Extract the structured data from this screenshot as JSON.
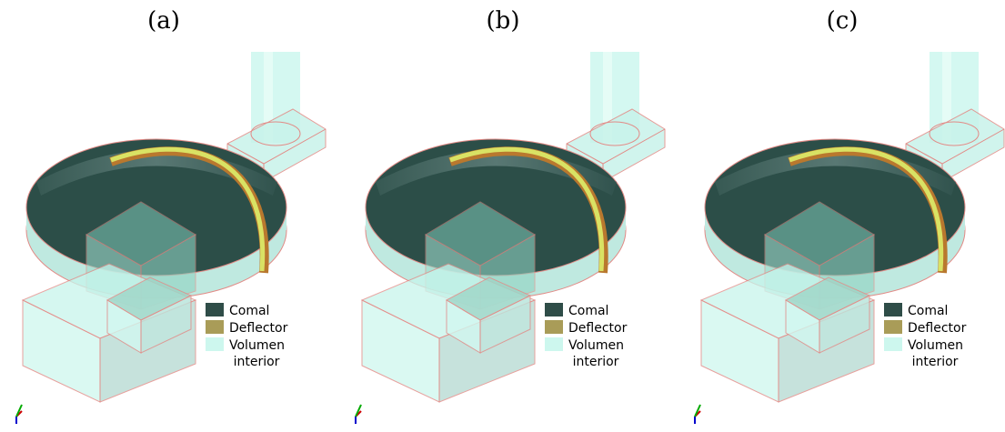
{
  "panels": [
    {
      "label": "(a)",
      "legend": [
        {
          "text": [
            "Comal"
          ],
          "color": "#2f4d48"
        },
        {
          "text": [
            "Deflector"
          ],
          "color": "#a99c58"
        },
        {
          "text": [
            "Volumen",
            "interior"
          ],
          "color": "#cdf7ee"
        }
      ]
    },
    {
      "label": "(b)",
      "legend": [
        {
          "text": [
            "Comal"
          ],
          "color": "#2f4d48"
        },
        {
          "text": [
            "Deflector"
          ],
          "color": "#a99c58"
        },
        {
          "text": [
            "Volumen",
            "interior"
          ],
          "color": "#cdf7ee"
        }
      ]
    },
    {
      "label": "(c)",
      "legend": [
        {
          "text": [
            "Comal"
          ],
          "color": "#2f4d48"
        },
        {
          "text": [
            "Deflector"
          ],
          "color": "#a99c58"
        },
        {
          "text": [
            "Volumen",
            "interior"
          ],
          "color": "#cdf7ee"
        }
      ]
    }
  ]
}
